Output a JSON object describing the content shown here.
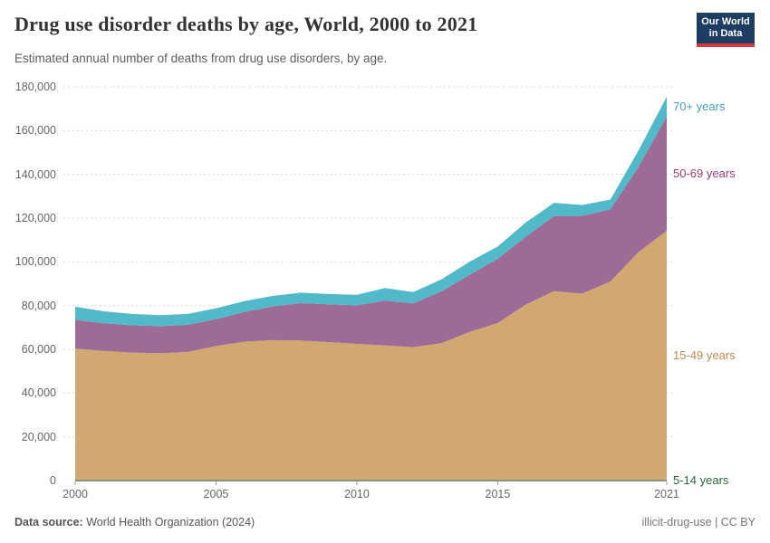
{
  "header": {
    "title": "Drug use disorder deaths by age, World, 2000 to 2021",
    "subtitle": "Estimated annual number of deaths from drug use disorders, by age.",
    "logo": {
      "line1": "Our World",
      "line2": "in Data",
      "bg_color": "#1D3D63",
      "accent_color": "#D6363D"
    }
  },
  "footer": {
    "source_label": "Data source:",
    "source_text": " World Health Organization (2024)",
    "right_text": "illicit-drug-use | CC BY"
  },
  "chart_data": {
    "type": "area",
    "stacked": true,
    "title": "Drug use disorder deaths by age, World, 2000 to 2021",
    "ylabel": "",
    "xlabel": "",
    "ylim": [
      0,
      180000
    ],
    "grid": "horizontal-dashed",
    "legend_position": "right-inline",
    "x": [
      2000,
      2001,
      2002,
      2003,
      2004,
      2005,
      2006,
      2007,
      2008,
      2009,
      2010,
      2011,
      2012,
      2013,
      2014,
      2015,
      2016,
      2017,
      2018,
      2019,
      2020,
      2021
    ],
    "x_ticks": [
      {
        "v": 2000,
        "label": "2000"
      },
      {
        "v": 2005,
        "label": "2005"
      },
      {
        "v": 2010,
        "label": "2010"
      },
      {
        "v": 2015,
        "label": "2015"
      },
      {
        "v": 2021,
        "label": "2021"
      }
    ],
    "y_ticks": [
      {
        "v": 0,
        "label": "0"
      },
      {
        "v": 20000,
        "label": "20,000"
      },
      {
        "v": 40000,
        "label": "40,000"
      },
      {
        "v": 60000,
        "label": "60,000"
      },
      {
        "v": 80000,
        "label": "80,000"
      },
      {
        "v": 100000,
        "label": "100,000"
      },
      {
        "v": 120000,
        "label": "120,000"
      },
      {
        "v": 140000,
        "label": "140,000"
      },
      {
        "v": 160000,
        "label": "160,000"
      },
      {
        "v": 180000,
        "label": "180,000"
      }
    ],
    "series": [
      {
        "name": "5-14 years",
        "color": "#3C8A5B",
        "label_color": "#26683B",
        "values": [
          300,
          300,
          300,
          300,
          300,
          300,
          300,
          300,
          300,
          300,
          300,
          300,
          300,
          300,
          300,
          300,
          300,
          300,
          300,
          300,
          300,
          300
        ]
      },
      {
        "name": "15-49 years",
        "color": "#D1A871",
        "label_color": "#BC8A4F",
        "values": [
          60000,
          59000,
          58200,
          57900,
          58500,
          61200,
          63200,
          63900,
          63700,
          63000,
          62200,
          61500,
          60700,
          62500,
          67700,
          71700,
          80200,
          86300,
          85200,
          90700,
          104200,
          113900
        ]
      },
      {
        "name": "50-69 years",
        "color": "#9E6A96",
        "label_color": "#9A3E6F",
        "values": [
          13200,
          12600,
          12500,
          12400,
          12400,
          12300,
          13500,
          15400,
          17100,
          17300,
          17600,
          20500,
          20000,
          23700,
          26000,
          29400,
          31000,
          34400,
          35500,
          33000,
          39000,
          52300
        ]
      },
      {
        "name": "70+ years",
        "color": "#52B9C9",
        "label_color": "#45A1B8",
        "values": [
          6000,
          5500,
          5200,
          5000,
          5000,
          5000,
          5000,
          4800,
          4800,
          4700,
          4800,
          5700,
          5200,
          5500,
          6000,
          5600,
          6500,
          6000,
          5000,
          4500,
          7500,
          9000
        ]
      }
    ]
  }
}
